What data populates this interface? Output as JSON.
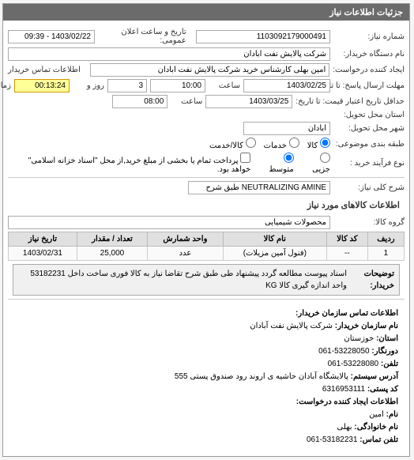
{
  "panel_title": "جزئیات اطلاعات نیاز",
  "labels": {
    "shomare_niaz": "شماره نیاز:",
    "tarikh_elan": "تاریخ و ساعت اعلان عمومی:",
    "nam_dastgah": "نام دستگاه خریدار:",
    "ijad_konande": "ایجاد کننده درخواست:",
    "tamas_kharidar": "اطلاعات تماس خریدار",
    "mohlat_ta": "مهلت ارسال پاسخ: تا تاریخ:",
    "saat": "ساعت",
    "zaman_baghi": "زمان باقی مانده",
    "rooz_va": "روز و",
    "hadaksar_etbar": "حداقل تاریخ اعتبار قیمت: تا تاریخ:",
    "ostan_tahvil": "استان محل تحویل:",
    "shahr_tahvil": "شهر محل تحویل:",
    "tabaghe_mozoi": "طبقه بندی موضوعی:",
    "kala": "کالا",
    "khadamat": "خدمات",
    "kala_khadamat": "کالا/خدمت",
    "noe_farakhan": "نوع فرآیند خرید :",
    "jozi": "جزیی",
    "motevaset": "متوسط",
    "omde": "پرداخت تمام یا بخشی از مبلغ خرید,از محل \"اسناد خزانه اسلامی\" خواهد بود.",
    "sharh_koli": "شرح کلی نیاز:",
    "etelaat_kala": "اطلاعات کالاهای مورد نیاز",
    "goruh_kala": "گروه کالا:",
    "tozihat_lbl": "توضیحات خریدار:",
    "contact_title": "اطلاعات تماس سازمان خریدار:",
    "nam_sazman": "نام سازمان خریدار:",
    "ostan": "استان:",
    "dornegar": "دورنگار:",
    "telefon": "تلفن:",
    "adres": "آدرس سیستم:",
    "kod_posti": "کد پستی:",
    "etelaat_ijad": "اطلاعات ایجاد کننده درخواست:",
    "nam": "نام:",
    "nam_khanevadegi": "نام خانوادگی:",
    "telefon_tamas": "تلفن تماس:"
  },
  "values": {
    "shomare_niaz": "1103092179000491",
    "tarikh_elan": "1403/02/22 - 09:39",
    "nam_dastgah": "شرکت پالایش نفت آبادان",
    "ijad_konande": "امین بهلی کارشناس خرید شرکت پالایش نفت آبادان",
    "mohlat_tarikh": "1403/02/25",
    "mohlat_saat": "10:00",
    "rooz": "3",
    "baghi": "00:13:24",
    "etbar_tarikh": "1403/03/25",
    "etbar_saat": "08:00",
    "shahr_tahvil": "آبادان",
    "sharh_koli": "NEUTRALIZING AMINE طبق شرح",
    "goruh_kala": "محصولات شیمیایی",
    "tozihat": "اسناد پیوست مطالعه گردد پیشنهاد طی طبق شرح تقاضا نیاز به کالا فوری ساخت داخل 53182231 واحد اندازه گیری کالا KG",
    "nam_sazman_v": "شرکت پالایش نفت آبادان",
    "ostan_v": "خوزستان",
    "dornegar_v": "53228050-061",
    "telefon_v": "53228080-061",
    "adres_v": "پالایشگاه آبادان حاشیه ی اروند رود صندوق پستی 555",
    "kod_posti_v": "6316953111",
    "nam_v": "امین",
    "nam_kh_v": "بهلی",
    "telefon_tamas_v": "53182231-061"
  },
  "table": {
    "headers": [
      "ردیف",
      "کد کالا",
      "نام کالا",
      "واحد شمارش",
      "تعداد / مقدار",
      "تاریخ نیاز"
    ],
    "row": [
      "1",
      "--",
      "(فنول آمین مزیلات)",
      "عدد",
      "25,000",
      "1403/02/31"
    ]
  }
}
